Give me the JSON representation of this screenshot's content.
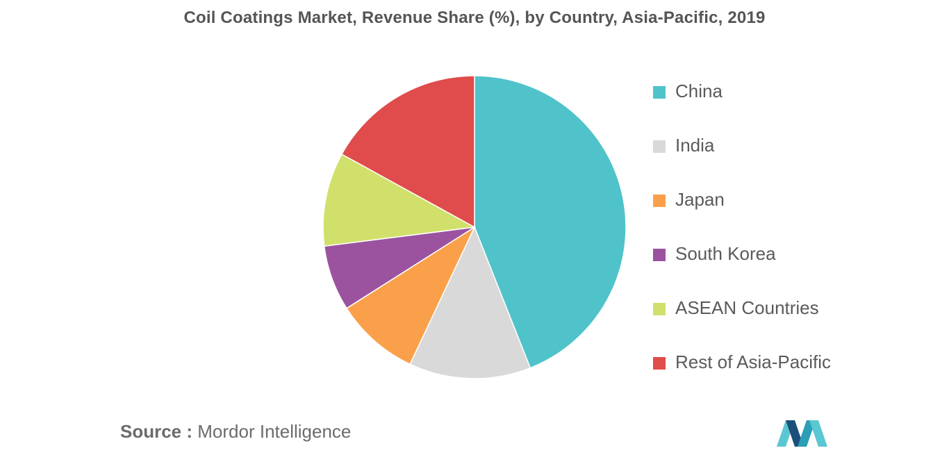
{
  "title": "Coil Coatings Market, Revenue Share (%), by Country, Asia-Pacific, 2019",
  "source": {
    "prefix": "Source :",
    "text": "Mordor Intelligence"
  },
  "logo": {
    "icon": "mordor-intelligence-logo-icon",
    "colors": [
      "#2a9fb5",
      "#1c4f7a",
      "#5bc7d2"
    ]
  },
  "chart_data": {
    "type": "pie",
    "title": "Coil Coatings Market, Revenue Share (%), by Country, Asia-Pacific, 2019",
    "unit": "%",
    "start_angle_deg": 0,
    "direction": "clockwise",
    "legend_position": "right",
    "slices": [
      {
        "label": "China",
        "value": 44,
        "color": "#4fc3c9"
      },
      {
        "label": "India",
        "value": 13,
        "color": "#d9d9d9"
      },
      {
        "label": "Japan",
        "value": 9,
        "color": "#fba04a"
      },
      {
        "label": "South Korea",
        "value": 7,
        "color": "#9b539f"
      },
      {
        "label": "ASEAN Countries",
        "value": 10,
        "color": "#d1e06a"
      },
      {
        "label": "Rest of Asia-Pacific",
        "value": 17,
        "color": "#e04b4b"
      }
    ]
  }
}
